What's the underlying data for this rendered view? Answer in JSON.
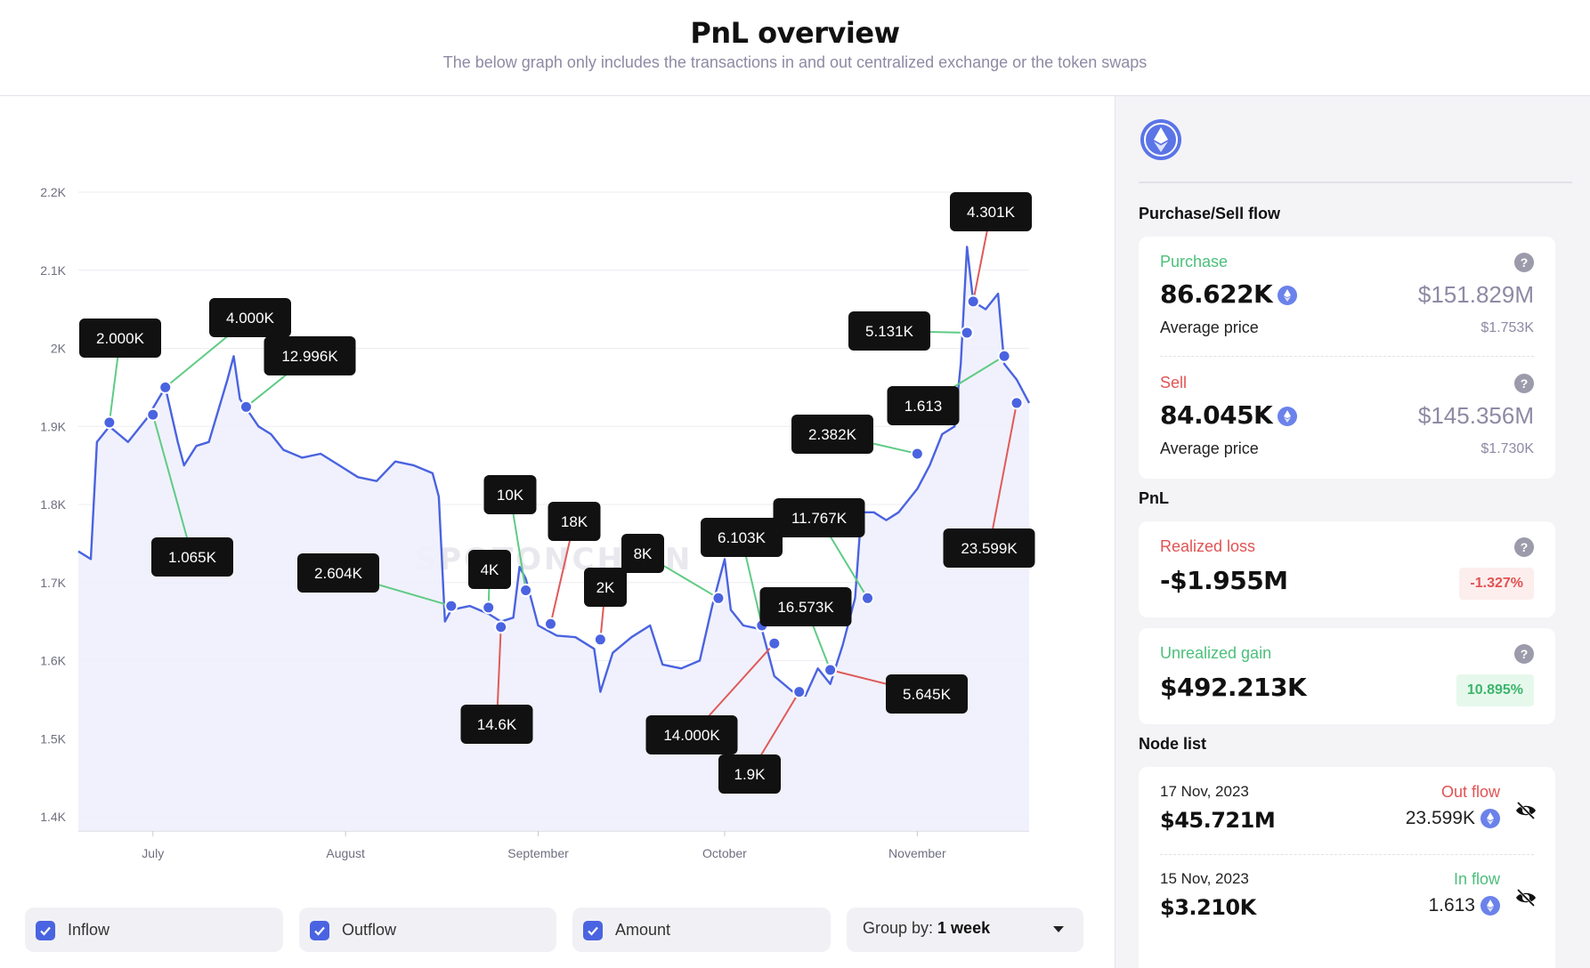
{
  "header": {
    "title": "PnL overview",
    "subtitle": "The below graph only includes the transactions in and out centralized exchange or the token swaps"
  },
  "colors": {
    "line": "#4a63e0",
    "fill": "#eef0fc",
    "inflow_connector": "#5fcb85",
    "outflow_connector": "#e05a5a",
    "marker": "#4a63e0",
    "label_bg": "#111111",
    "purchase": "#4cbf7b",
    "sell": "#e25353"
  },
  "watermark": "SPOTONCHAIN",
  "chart_data": {
    "type": "line",
    "title": "",
    "xlabel": "",
    "ylabel": "",
    "ylim": [
      1400,
      2200
    ],
    "y_ticks": [
      1400,
      1500,
      1600,
      1700,
      1800,
      1900,
      2000,
      2100,
      2200
    ],
    "y_tick_labels": [
      "1.4K",
      "1.5K",
      "1.6K",
      "1.7K",
      "1.8K",
      "1.9K",
      "2K",
      "2.1K",
      "2.2K"
    ],
    "x_tick_labels": [
      {
        "label": "July",
        "date": "2023-07-01"
      },
      {
        "label": "August",
        "date": "2023-08-01"
      },
      {
        "label": "September",
        "date": "2023-09-01"
      },
      {
        "label": "October",
        "date": "2023-10-01"
      },
      {
        "label": "November",
        "date": "2023-11-01"
      }
    ],
    "xlim": [
      "2023-06-19",
      "2023-11-19"
    ],
    "grid": true,
    "series": [
      {
        "points": [
          [
            "2023-06-19",
            1740
          ],
          [
            "2023-06-21",
            1730
          ],
          [
            "2023-06-22",
            1880
          ],
          [
            "2023-06-24",
            1900
          ],
          [
            "2023-06-27",
            1880
          ],
          [
            "2023-06-30",
            1910
          ],
          [
            "2023-07-03",
            1950
          ],
          [
            "2023-07-05",
            1880
          ],
          [
            "2023-07-06",
            1850
          ],
          [
            "2023-07-08",
            1875
          ],
          [
            "2023-07-10",
            1880
          ],
          [
            "2023-07-13",
            1960
          ],
          [
            "2023-07-14",
            1990
          ],
          [
            "2023-07-15",
            1935
          ],
          [
            "2023-07-18",
            1900
          ],
          [
            "2023-07-20",
            1890
          ],
          [
            "2023-07-22",
            1870
          ],
          [
            "2023-07-25",
            1860
          ],
          [
            "2023-07-28",
            1865
          ],
          [
            "2023-07-31",
            1850
          ],
          [
            "2023-08-03",
            1835
          ],
          [
            "2023-08-06",
            1830
          ],
          [
            "2023-08-09",
            1855
          ],
          [
            "2023-08-12",
            1850
          ],
          [
            "2023-08-15",
            1840
          ],
          [
            "2023-08-16",
            1810
          ],
          [
            "2023-08-17",
            1650
          ],
          [
            "2023-08-18",
            1665
          ],
          [
            "2023-08-21",
            1670
          ],
          [
            "2023-08-24",
            1660
          ],
          [
            "2023-08-26",
            1650
          ],
          [
            "2023-08-28",
            1655
          ],
          [
            "2023-08-29",
            1720
          ],
          [
            "2023-08-30",
            1705
          ],
          [
            "2023-09-01",
            1645
          ],
          [
            "2023-09-04",
            1632
          ],
          [
            "2023-09-07",
            1630
          ],
          [
            "2023-09-10",
            1615
          ],
          [
            "2023-09-11",
            1560
          ],
          [
            "2023-09-13",
            1610
          ],
          [
            "2023-09-16",
            1630
          ],
          [
            "2023-09-19",
            1645
          ],
          [
            "2023-09-21",
            1595
          ],
          [
            "2023-09-24",
            1590
          ],
          [
            "2023-09-27",
            1600
          ],
          [
            "2023-09-29",
            1670
          ],
          [
            "2023-10-01",
            1730
          ],
          [
            "2023-10-02",
            1665
          ],
          [
            "2023-10-04",
            1645
          ],
          [
            "2023-10-07",
            1640
          ],
          [
            "2023-10-09",
            1580
          ],
          [
            "2023-10-12",
            1560
          ],
          [
            "2023-10-14",
            1555
          ],
          [
            "2023-10-16",
            1590
          ],
          [
            "2023-10-18",
            1570
          ],
          [
            "2023-10-20",
            1620
          ],
          [
            "2023-10-22",
            1680
          ],
          [
            "2023-10-23",
            1790
          ],
          [
            "2023-10-25",
            1790
          ],
          [
            "2023-10-27",
            1780
          ],
          [
            "2023-10-29",
            1790
          ],
          [
            "2023-11-01",
            1820
          ],
          [
            "2023-11-03",
            1850
          ],
          [
            "2023-11-05",
            1890
          ],
          [
            "2023-11-07",
            1900
          ],
          [
            "2023-11-08",
            1980
          ],
          [
            "2023-11-09",
            2130
          ],
          [
            "2023-11-10",
            2060
          ],
          [
            "2023-11-12",
            2050
          ],
          [
            "2023-11-14",
            2070
          ],
          [
            "2023-11-15",
            1980
          ],
          [
            "2023-11-17",
            1960
          ],
          [
            "2023-11-19",
            1930
          ]
        ]
      }
    ],
    "annotations": [
      {
        "label": "2.000K",
        "date": "2023-06-24",
        "price": 1905,
        "flow": "in"
      },
      {
        "label": "1.065K",
        "date": "2023-07-01",
        "price": 1915,
        "flow": "in"
      },
      {
        "label": "4.000K",
        "date": "2023-07-03",
        "price": 1950,
        "flow": "in"
      },
      {
        "label": "12.996K",
        "date": "2023-07-16",
        "price": 1925,
        "flow": "in"
      },
      {
        "label": "2.604K",
        "date": "2023-08-18",
        "price": 1670,
        "flow": "in"
      },
      {
        "label": "4K",
        "date": "2023-08-24",
        "price": 1668,
        "flow": "in"
      },
      {
        "label": "14.6K",
        "date": "2023-08-26",
        "price": 1643,
        "flow": "out"
      },
      {
        "label": "10K",
        "date": "2023-08-30",
        "price": 1690,
        "flow": "in"
      },
      {
        "label": "18K",
        "date": "2023-09-03",
        "price": 1647,
        "flow": "out"
      },
      {
        "label": "2K",
        "date": "2023-09-11",
        "price": 1627,
        "flow": "out"
      },
      {
        "label": "8K",
        "date": "2023-09-30",
        "price": 1680,
        "flow": "in"
      },
      {
        "label": "6.103K",
        "date": "2023-10-07",
        "price": 1645,
        "flow": "in"
      },
      {
        "label": "14.000K",
        "date": "2023-10-09",
        "price": 1622,
        "flow": "out"
      },
      {
        "label": "1.9K",
        "date": "2023-10-13",
        "price": 1560,
        "flow": "out"
      },
      {
        "label": "16.573K",
        "date": "2023-10-18",
        "price": 1588,
        "flow": "in"
      },
      {
        "label": "5.645K",
        "date": "2023-10-18",
        "price": 1588,
        "flow": "out"
      },
      {
        "label": "11.767K",
        "date": "2023-10-24",
        "price": 1680,
        "flow": "in"
      },
      {
        "label": "2.382K",
        "date": "2023-11-01",
        "price": 1865,
        "flow": "in"
      },
      {
        "label": "5.131K",
        "date": "2023-11-09",
        "price": 2020,
        "flow": "in"
      },
      {
        "label": "4.301K",
        "date": "2023-11-10",
        "price": 2060,
        "flow": "out"
      },
      {
        "label": "1.613",
        "date": "2023-11-15",
        "price": 1990,
        "flow": "in"
      },
      {
        "label": "23.599K",
        "date": "2023-11-17",
        "price": 1930,
        "flow": "out"
      }
    ]
  },
  "controls": {
    "inflow_label": "Inflow",
    "outflow_label": "Outflow",
    "amount_label": "Amount",
    "group_prefix": "Group by: ",
    "group_value": "1 week"
  },
  "sidebar": {
    "token_icon": "ethereum-icon",
    "flow_title": "Purchase/Sell flow",
    "purchase": {
      "label": "Purchase",
      "amount": "86.622K",
      "usd": "$151.829M",
      "avg_label": "Average price",
      "avg_value": "$1.753K",
      "help": "?"
    },
    "sell": {
      "label": "Sell",
      "amount": "84.045K",
      "usd": "$145.356M",
      "avg_label": "Average price",
      "avg_value": "$1.730K",
      "help": "?"
    },
    "pnl_title": "PnL",
    "realized": {
      "label": "Realized loss",
      "value": "-$1.955M",
      "pct": "-1.327%",
      "help": "?"
    },
    "unrealized": {
      "label": "Unrealized gain",
      "value": "$492.213K",
      "pct": "10.895%",
      "help": "?"
    },
    "node_title": "Node list",
    "nodes": [
      {
        "date": "17 Nov, 2023",
        "flow": "Out flow",
        "usd": "$45.721M",
        "amount": "23.599K"
      },
      {
        "date": "15 Nov, 2023",
        "flow": "In flow",
        "usd": "$3.210K",
        "amount": "1.613"
      }
    ]
  }
}
